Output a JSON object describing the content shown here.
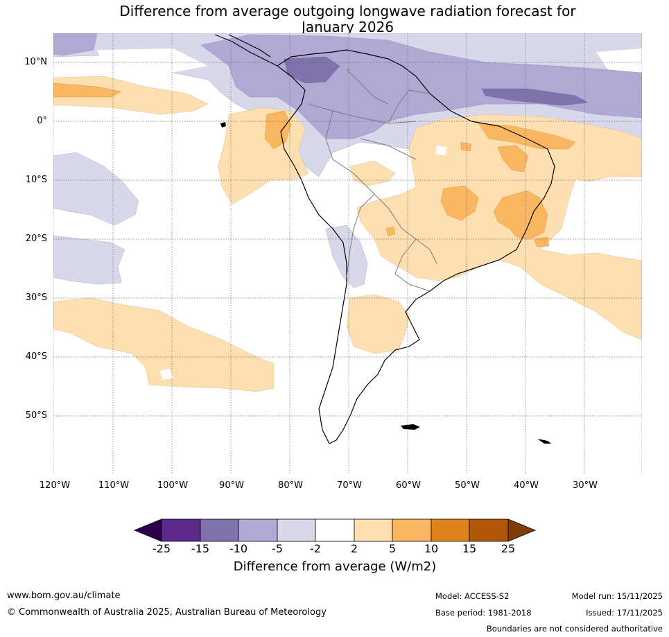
{
  "title": {
    "line1": "Difference from average outgoing longwave radiation forecast for",
    "line2": "January 2026"
  },
  "map": {
    "lat_labels": [
      "10°N",
      "0°",
      "10°S",
      "20°S",
      "30°S",
      "40°S",
      "50°S"
    ],
    "lon_labels": [
      "120°W",
      "110°W",
      "100°W",
      "90°W",
      "80°W",
      "70°W",
      "60°W",
      "50°W",
      "40°W",
      "30°W"
    ],
    "extent": {
      "lon_min": -120,
      "lon_max": -20,
      "lat_min": -60,
      "lat_max": 15
    }
  },
  "colorbar": {
    "ticks": [
      "-25",
      "-15",
      "-10",
      "-5",
      "-2",
      "2",
      "5",
      "10",
      "15",
      "25"
    ],
    "colors": [
      "#2d004b",
      "#5b2a8c",
      "#8072ac",
      "#b0a9d3",
      "#d8d8ea",
      "#ffffff",
      "#fddfb1",
      "#fbb661",
      "#e0821a",
      "#b25708",
      "#7f3b08"
    ],
    "title": "Difference from average (W/m2)"
  },
  "footer": {
    "url": "www.bom.gov.au/climate",
    "copyright": "© Commonwealth of Australia 2025, Australian Bureau of Meteorology",
    "model": "Model: ACCESS-S2",
    "base_period": "Base period: 1981-2018",
    "model_run": "Model run: 15/11/2025",
    "issued": "Issued: 17/11/2025",
    "disclaimer": "Boundaries are not considered authoritative"
  }
}
